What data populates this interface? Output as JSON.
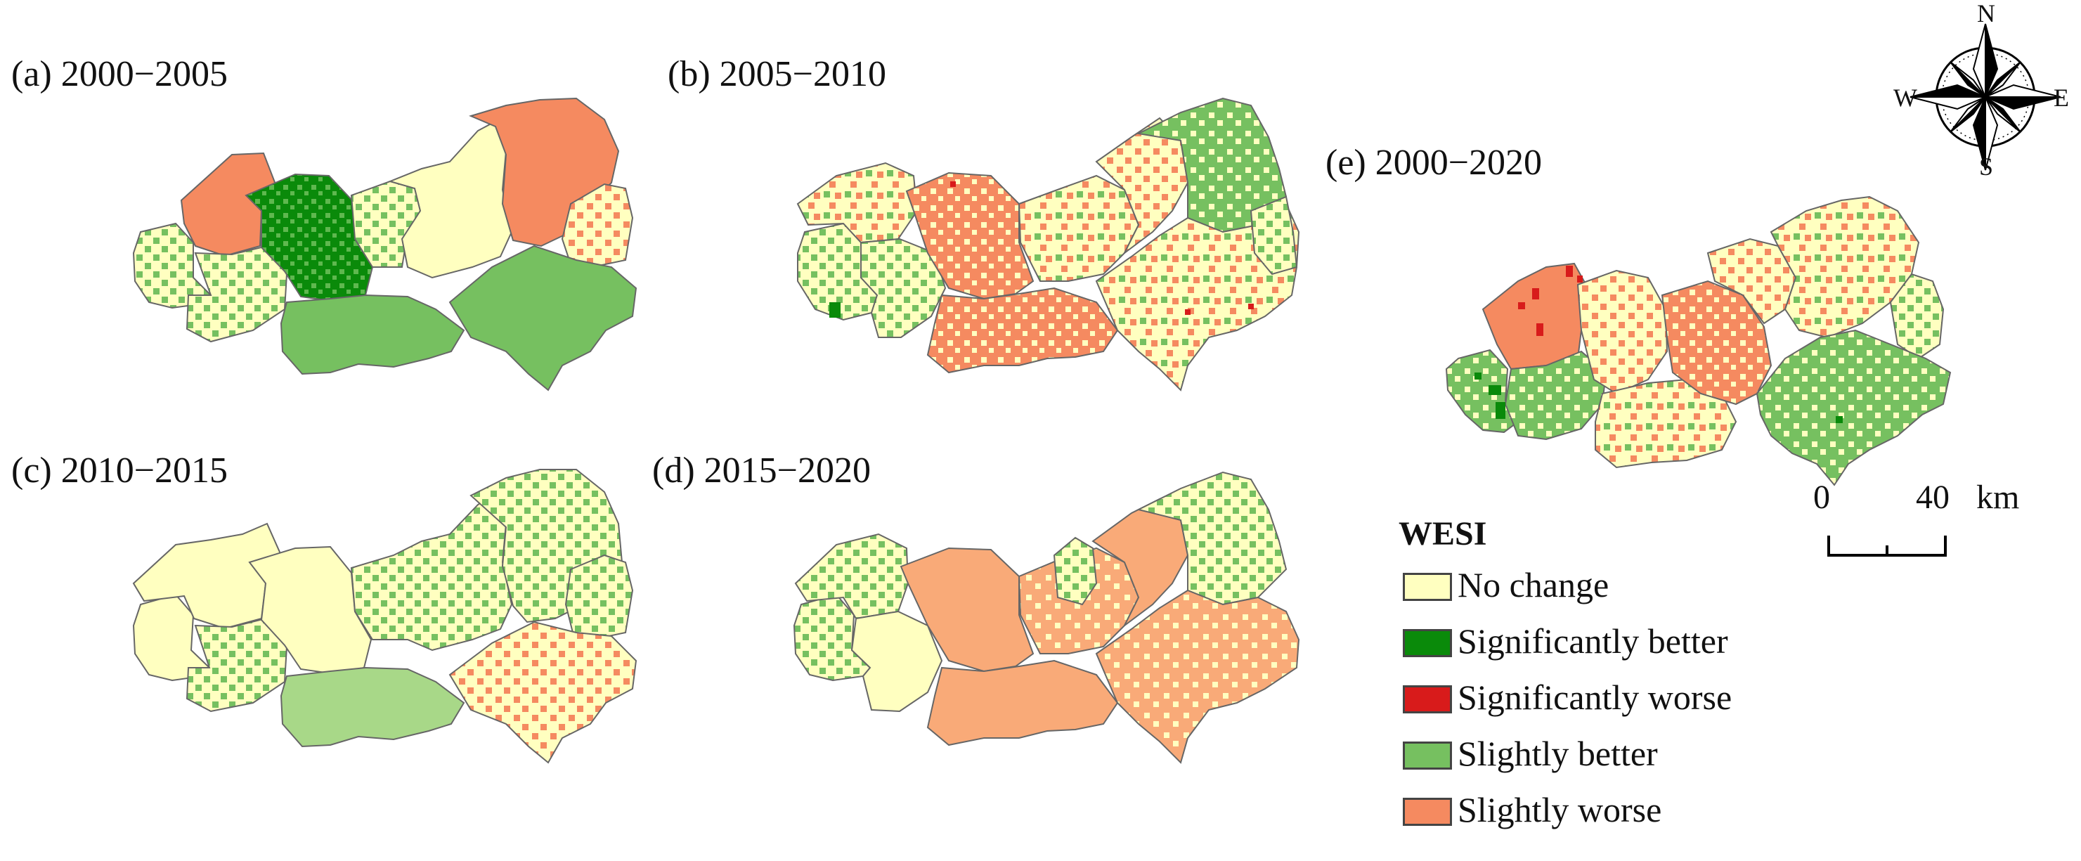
{
  "panels": [
    {
      "id": "a",
      "title": "(a) 2000−2005"
    },
    {
      "id": "b",
      "title": "(b) 2005−2010"
    },
    {
      "id": "c",
      "title": "(c) 2010−2015"
    },
    {
      "id": "d",
      "title": "(d) 2015−2020"
    },
    {
      "id": "e",
      "title": "(e) 2000−2020"
    }
  ],
  "legend": {
    "title": "WESI",
    "items": [
      {
        "label": "No change",
        "color": "#FFFFC0"
      },
      {
        "label": "Significantly better",
        "color": "#0A8A0A"
      },
      {
        "label": "Significantly worse",
        "color": "#D81B1B"
      },
      {
        "label": "Slightly better",
        "color": "#76C060"
      },
      {
        "label": "Slightly worse",
        "color": "#F58A60"
      }
    ]
  },
  "scale_bar": {
    "zero": "0",
    "forty": "40",
    "unit": "km"
  },
  "compass": {
    "n": "N",
    "s": "S",
    "e": "E",
    "w": "W"
  }
}
